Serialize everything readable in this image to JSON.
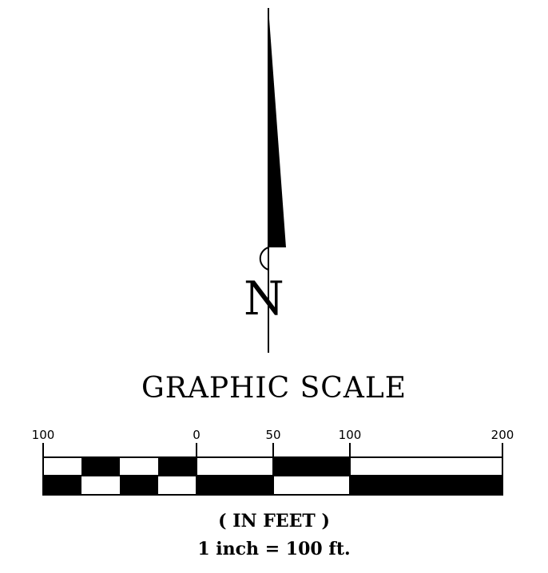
{
  "north_arrow": {
    "label": "N"
  },
  "scale": {
    "title": "GRAPHIC SCALE",
    "tick_labels": [
      "100",
      "0",
      "50",
      "100",
      "200"
    ],
    "units_label": "( IN FEET )",
    "ratio_label": "1 inch = 100 ft."
  }
}
